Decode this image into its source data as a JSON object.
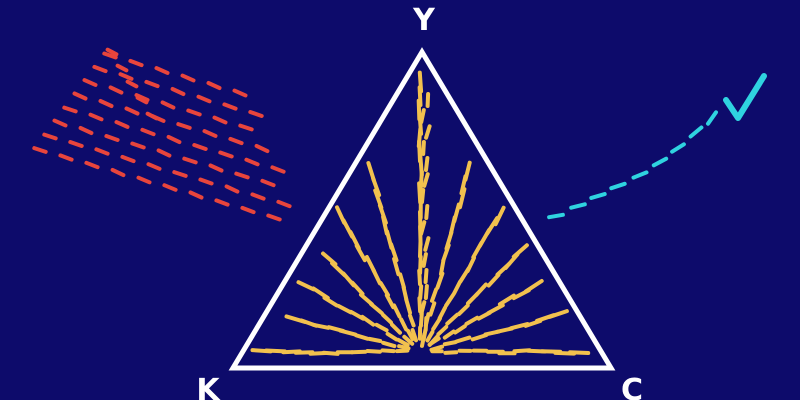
{
  "labels": {
    "top": "Y",
    "bottom_left": "K",
    "bottom_right": "C"
  },
  "colors": {
    "background": "#0d0b6b",
    "triangle": "#ffffff",
    "labels": "#ffffff",
    "inner_dashes": "#f2c14e",
    "left_dashes": "#e8453c",
    "right_dashes": "#2fd3e0"
  }
}
